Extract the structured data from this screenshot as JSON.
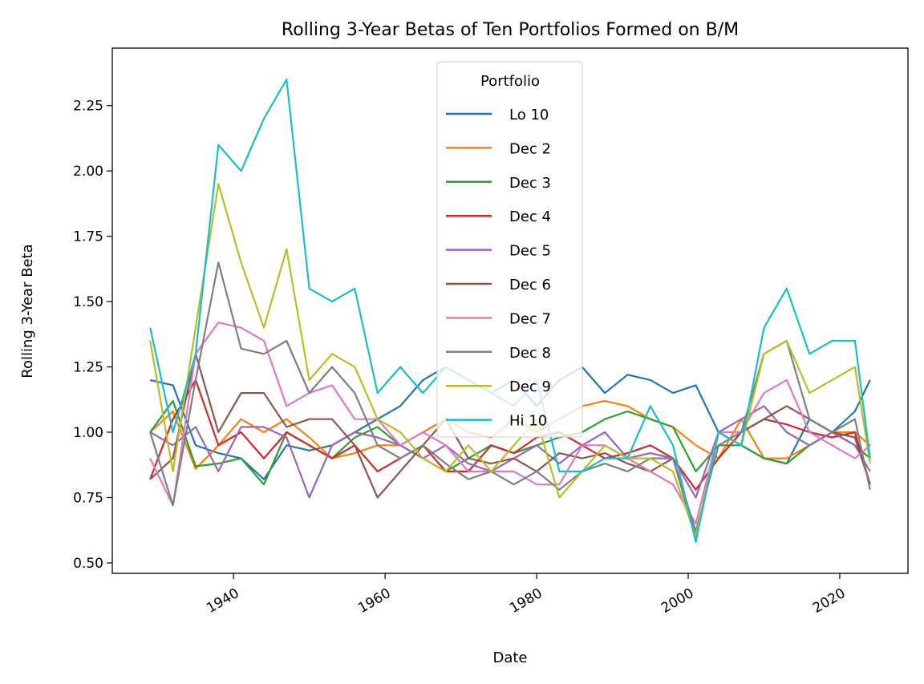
{
  "chart_data": {
    "type": "line",
    "title": "Rolling 3-Year Betas of Ten Portfolios Formed on B/M",
    "xlabel": "Date",
    "ylabel": "Rolling 3-Year Beta",
    "xlim": [
      1924,
      2029
    ],
    "ylim": [
      0.46,
      2.47
    ],
    "xticks": [
      1940,
      1960,
      1980,
      2000,
      2020
    ],
    "xtick_labels": [
      "1940",
      "1960",
      "1980",
      "2000",
      "2020"
    ],
    "yticks": [
      0.5,
      0.75,
      1.0,
      1.25,
      1.5,
      1.75,
      2.0,
      2.25
    ],
    "ytick_labels": [
      "0.50",
      "0.75",
      "1.00",
      "1.25",
      "1.50",
      "1.75",
      "2.00",
      "2.25"
    ],
    "grid": false,
    "legend": {
      "title": "Portfolio",
      "placement": "upper-center"
    },
    "x": [
      1929,
      1932,
      1935,
      1938,
      1941,
      1944,
      1947,
      1950,
      1953,
      1956,
      1959,
      1962,
      1965,
      1968,
      1971,
      1974,
      1977,
      1980,
      1983,
      1986,
      1989,
      1992,
      1995,
      1998,
      2001,
      2004,
      2007,
      2010,
      2013,
      2016,
      2019,
      2022,
      2024
    ],
    "series": [
      {
        "name": "Lo 10",
        "color": "#1f77b4",
        "values": [
          1.2,
          1.18,
          0.95,
          0.92,
          0.9,
          0.82,
          0.95,
          0.93,
          0.95,
          1.0,
          1.05,
          1.1,
          1.2,
          1.25,
          1.2,
          1.15,
          1.2,
          1.1,
          1.2,
          1.25,
          1.15,
          1.22,
          1.2,
          1.15,
          1.18,
          1.0,
          0.95,
          0.9,
          0.88,
          1.05,
          1.0,
          1.08,
          1.2
        ]
      },
      {
        "name": "Dec 2",
        "color": "#ff7f0e",
        "values": [
          1.0,
          1.08,
          0.86,
          0.95,
          1.05,
          1.0,
          1.05,
          0.98,
          0.9,
          0.92,
          0.95,
          0.95,
          1.0,
          1.05,
          1.0,
          0.98,
          1.05,
          1.0,
          1.05,
          1.1,
          1.12,
          1.1,
          1.05,
          1.02,
          0.95,
          0.9,
          1.05,
          0.9,
          0.9,
          0.95,
          1.0,
          1.0,
          0.95
        ]
      },
      {
        "name": "Dec 3",
        "color": "#2ca02c",
        "values": [
          1.0,
          1.12,
          0.87,
          0.88,
          0.9,
          0.8,
          1.0,
          0.95,
          0.9,
          0.98,
          1.02,
          0.95,
          0.9,
          0.85,
          0.9,
          0.95,
          0.92,
          0.95,
          0.98,
          1.0,
          1.05,
          1.08,
          1.05,
          1.02,
          0.85,
          0.95,
          0.95,
          0.9,
          0.88,
          0.95,
          1.0,
          0.95,
          0.9
        ]
      },
      {
        "name": "Dec 4",
        "color": "#d62728",
        "values": [
          0.82,
          1.05,
          1.2,
          0.95,
          1.0,
          0.9,
          1.0,
          0.95,
          0.9,
          0.95,
          0.85,
          0.9,
          0.95,
          0.85,
          0.85,
          0.95,
          0.92,
          0.98,
          1.0,
          0.95,
          0.9,
          0.92,
          0.95,
          0.9,
          0.78,
          0.9,
          1.0,
          1.05,
          1.03,
          1.0,
          0.98,
          1.0,
          0.8
        ]
      },
      {
        "name": "Dec 5",
        "color": "#9467bd",
        "values": [
          1.0,
          0.95,
          1.02,
          0.85,
          1.02,
          1.02,
          0.98,
          0.75,
          0.95,
          1.0,
          0.98,
          0.95,
          0.9,
          0.95,
          0.88,
          0.85,
          0.9,
          0.95,
          0.88,
          0.95,
          1.0,
          0.9,
          0.92,
          0.9,
          0.75,
          1.0,
          1.05,
          1.1,
          1.0,
          0.95,
          1.0,
          0.95,
          0.85
        ]
      },
      {
        "name": "Dec 6",
        "color": "#8c564b",
        "values": [
          0.82,
          0.9,
          1.3,
          1.0,
          1.15,
          1.15,
          1.02,
          1.05,
          1.05,
          0.95,
          0.75,
          0.85,
          0.95,
          1.05,
          0.9,
          0.88,
          0.9,
          0.85,
          0.92,
          0.9,
          0.92,
          0.88,
          0.85,
          0.9,
          0.6,
          1.0,
          1.0,
          1.05,
          1.1,
          1.05,
          1.0,
          0.98,
          0.8
        ]
      },
      {
        "name": "Dec 7",
        "color": "#e377c2",
        "values": [
          0.9,
          0.72,
          1.3,
          1.42,
          1.4,
          1.35,
          1.1,
          1.15,
          1.18,
          1.05,
          1.05,
          0.95,
          1.0,
          0.95,
          0.85,
          0.85,
          0.85,
          0.8,
          0.8,
          0.95,
          0.95,
          0.9,
          0.85,
          0.8,
          0.65,
          1.0,
          1.0,
          1.15,
          1.2,
          1.0,
          0.95,
          0.9,
          0.95
        ]
      },
      {
        "name": "Dec 8",
        "color": "#7f7f7f",
        "values": [
          1.0,
          0.72,
          1.2,
          1.65,
          1.32,
          1.3,
          1.35,
          1.15,
          1.25,
          1.15,
          0.95,
          0.9,
          0.95,
          0.88,
          0.82,
          0.85,
          0.8,
          0.85,
          0.78,
          0.85,
          0.88,
          0.85,
          0.9,
          0.9,
          0.62,
          0.95,
          1.0,
          1.3,
          1.35,
          1.05,
          1.0,
          1.05,
          0.78
        ]
      },
      {
        "name": "Dec 9",
        "color": "#bcbd22",
        "values": [
          1.35,
          0.85,
          1.4,
          1.95,
          1.65,
          1.4,
          1.7,
          1.2,
          1.3,
          1.25,
          1.05,
          1.0,
          0.9,
          0.85,
          0.95,
          0.85,
          0.95,
          1.05,
          0.75,
          0.85,
          0.95,
          0.9,
          0.9,
          0.85,
          0.6,
          1.0,
          0.95,
          1.3,
          1.35,
          1.15,
          1.2,
          1.25,
          0.88
        ]
      },
      {
        "name": "Hi 10",
        "color": "#17becf",
        "values": [
          1.4,
          1.0,
          1.3,
          2.1,
          2.0,
          2.2,
          2.35,
          1.55,
          1.5,
          1.55,
          1.15,
          1.25,
          1.15,
          1.25,
          1.2,
          1.15,
          1.1,
          1.2,
          0.85,
          0.85,
          0.9,
          0.9,
          1.1,
          0.95,
          0.58,
          1.0,
          0.95,
          1.4,
          1.55,
          1.3,
          1.35,
          1.35,
          0.9
        ]
      }
    ]
  }
}
